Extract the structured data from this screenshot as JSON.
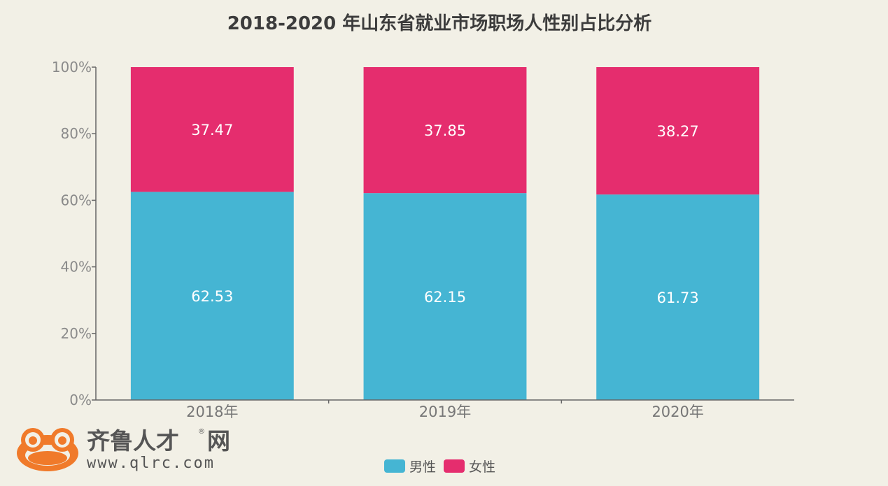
{
  "chart_data": {
    "type": "bar",
    "stacked": true,
    "title": "2018-2020 年山东省就业市场职场人性别占比分析",
    "categories": [
      "2018年",
      "2019年",
      "2020年"
    ],
    "series": [
      {
        "name": "男性",
        "values": [
          62.53,
          62.15,
          61.73
        ],
        "color": "#45b5d3"
      },
      {
        "name": "女性",
        "values": [
          37.47,
          37.85,
          38.27
        ],
        "color": "#e52d6e"
      }
    ],
    "y_ticks": [
      "0%",
      "20%",
      "40%",
      "60%",
      "80%",
      "100%"
    ],
    "ylim": [
      0,
      100
    ],
    "grid": false,
    "legend_position": "bottom-center"
  },
  "logo": {
    "name": "齐鲁人才",
    "suffix": "网",
    "registered": "®",
    "url": "www.qlrc.com",
    "color": "#f07a2a"
  }
}
